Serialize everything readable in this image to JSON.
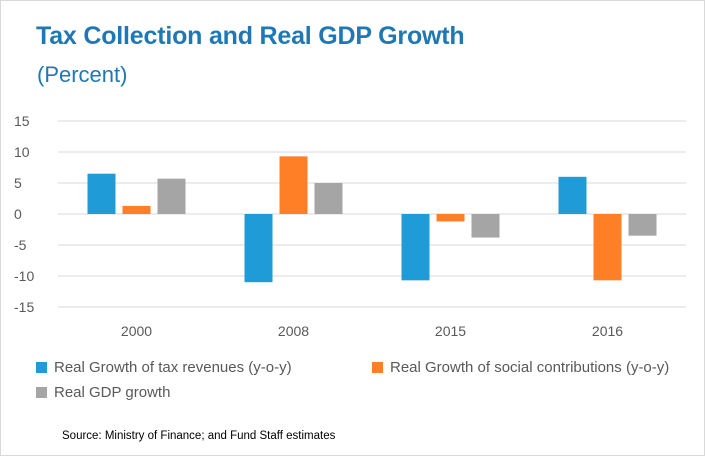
{
  "colors": {
    "title": "#1f78b4",
    "axis_text": "#595959",
    "gridline": "#d9d9d9"
  },
  "chart_data": {
    "type": "bar",
    "title": "Tax Collection and Real GDP Growth",
    "subtitle": "(Percent)",
    "categories": [
      "2000",
      "2008",
      "2015",
      "2016"
    ],
    "series": [
      {
        "name": "Real Growth of tax revenues (y-o-y)",
        "color": "#1f9bd7",
        "values": [
          6.5,
          -11.0,
          -10.7,
          6.0
        ]
      },
      {
        "name": "Real Growth of social contributions (y-o-y)",
        "color": "#ff7f27",
        "values": [
          1.3,
          9.3,
          -1.2,
          -10.7
        ]
      },
      {
        "name": "Real GDP growth",
        "color": "#a5a5a5",
        "values": [
          5.7,
          5.0,
          -3.8,
          -3.5
        ]
      }
    ],
    "ylim": [
      -15,
      15
    ],
    "yticks": [
      "15",
      "10",
      "5",
      "0",
      "-5",
      "-10",
      "-15"
    ],
    "grid": true,
    "legend_position": "bottom",
    "source": "Source: Ministry of Finance; and Fund Staff estimates"
  }
}
